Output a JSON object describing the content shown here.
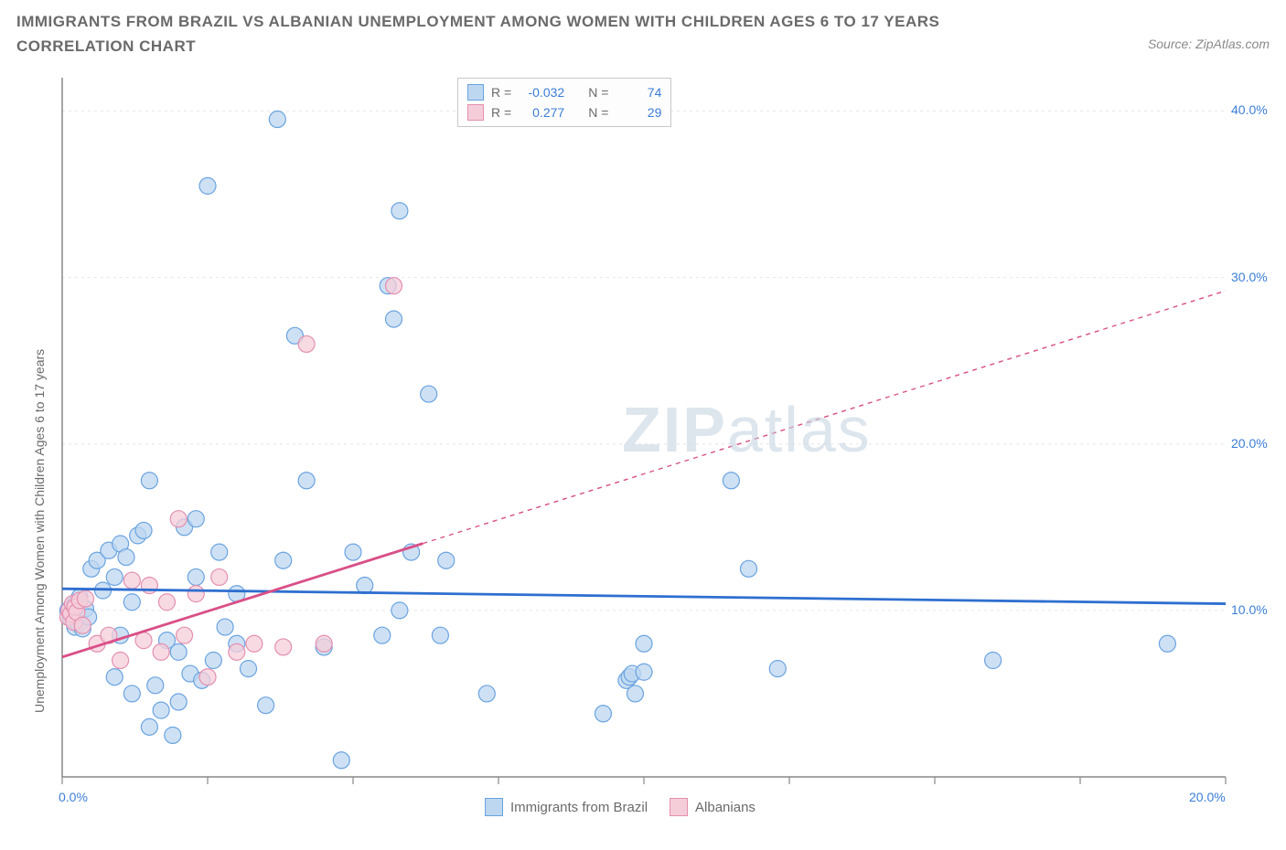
{
  "header": {
    "title": "IMMIGRANTS FROM BRAZIL VS ALBANIAN UNEMPLOYMENT AMONG WOMEN WITH CHILDREN AGES 6 TO 17 YEARS CORRELATION CHART",
    "source": "Source: ZipAtlas.com"
  },
  "watermark": {
    "bold": "ZIP",
    "light": "atlas"
  },
  "chart": {
    "type": "scatter",
    "ylabel": "Unemployment Among Women with Children Ages 6 to 17 years",
    "background_color": "#ffffff",
    "grid_color": "#e6e6e6",
    "axis_color": "#888888",
    "xlim": [
      0,
      20
    ],
    "ylim": [
      0,
      42
    ],
    "xtick_values": [
      0,
      2.5,
      5,
      7.5,
      10,
      12.5,
      15,
      17.5,
      20
    ],
    "xtick_labels": [
      "0.0%",
      "",
      "",
      "",
      "",
      "",
      "",
      "",
      "20.0%"
    ],
    "ytick_values": [
      10,
      20,
      30,
      40
    ],
    "ytick_labels": [
      "10.0%",
      "20.0%",
      "30.0%",
      "40.0%"
    ],
    "marker_radius": 9,
    "marker_stroke_width": 1.2,
    "trend_line_width": 2.8,
    "trend_dash": "5,5",
    "series": [
      {
        "key": "brazil",
        "label": "Immigrants from Brazil",
        "fill": "#bdd7f0",
        "stroke": "#6aa3e0",
        "line_color": "#2e6fd0",
        "R": "-0.032",
        "N": "74",
        "trend": {
          "x1": 0,
          "y1": 11.3,
          "x2": 20,
          "y2": 10.4,
          "solid_to_x": 20
        },
        "points": [
          [
            0.1,
            10.0
          ],
          [
            0.15,
            9.5
          ],
          [
            0.2,
            10.3
          ],
          [
            0.22,
            9.0
          ],
          [
            0.25,
            10.5
          ],
          [
            0.28,
            9.2
          ],
          [
            0.3,
            10.8
          ],
          [
            0.35,
            8.9
          ],
          [
            0.4,
            10.1
          ],
          [
            0.45,
            9.6
          ],
          [
            0.5,
            12.5
          ],
          [
            0.6,
            13.0
          ],
          [
            0.7,
            11.2
          ],
          [
            0.8,
            13.6
          ],
          [
            0.9,
            12.0
          ],
          [
            1.0,
            14.0
          ],
          [
            1.1,
            13.2
          ],
          [
            1.2,
            10.5
          ],
          [
            1.3,
            14.5
          ],
          [
            1.4,
            14.8
          ],
          [
            1.5,
            17.8
          ],
          [
            1.6,
            5.5
          ],
          [
            1.7,
            4.0
          ],
          [
            1.8,
            8.2
          ],
          [
            1.9,
            2.5
          ],
          [
            2.0,
            7.5
          ],
          [
            2.1,
            15.0
          ],
          [
            2.2,
            6.2
          ],
          [
            2.3,
            15.5
          ],
          [
            2.4,
            5.8
          ],
          [
            2.5,
            35.5
          ],
          [
            2.7,
            13.5
          ],
          [
            2.8,
            9.0
          ],
          [
            3.0,
            8.0
          ],
          [
            3.2,
            6.5
          ],
          [
            3.5,
            4.3
          ],
          [
            3.7,
            39.5
          ],
          [
            3.8,
            13.0
          ],
          [
            4.0,
            26.5
          ],
          [
            4.2,
            17.8
          ],
          [
            4.5,
            7.8
          ],
          [
            4.8,
            1.0
          ],
          [
            5.0,
            13.5
          ],
          [
            5.2,
            11.5
          ],
          [
            5.5,
            8.5
          ],
          [
            5.6,
            29.5
          ],
          [
            5.7,
            27.5
          ],
          [
            5.8,
            34.0
          ],
          [
            5.8,
            10.0
          ],
          [
            6.0,
            13.5
          ],
          [
            6.3,
            23.0
          ],
          [
            6.5,
            8.5
          ],
          [
            6.6,
            13.0
          ],
          [
            7.3,
            5.0
          ],
          [
            9.3,
            3.8
          ],
          [
            9.7,
            5.8
          ],
          [
            9.75,
            6.0
          ],
          [
            9.8,
            6.2
          ],
          [
            9.85,
            5.0
          ],
          [
            10.0,
            6.3
          ],
          [
            10.0,
            8.0
          ],
          [
            11.5,
            17.8
          ],
          [
            11.8,
            12.5
          ],
          [
            12.3,
            6.5
          ],
          [
            16.0,
            7.0
          ],
          [
            19.0,
            8.0
          ],
          [
            0.9,
            6.0
          ],
          [
            1.2,
            5.0
          ],
          [
            1.5,
            3.0
          ],
          [
            2.0,
            4.5
          ],
          [
            2.6,
            7.0
          ],
          [
            3.0,
            11.0
          ],
          [
            2.3,
            12.0
          ],
          [
            1.0,
            8.5
          ]
        ]
      },
      {
        "key": "albanians",
        "label": "Albanians",
        "fill": "#f5cdd9",
        "stroke": "#e38fb0",
        "line_color": "#d94f87",
        "R": "0.277",
        "N": "29",
        "trend": {
          "x1": 0,
          "y1": 7.2,
          "x2": 20,
          "y2": 29.2,
          "solid_to_x": 6.2
        },
        "points": [
          [
            0.1,
            9.6
          ],
          [
            0.12,
            10.0
          ],
          [
            0.15,
            9.8
          ],
          [
            0.18,
            10.4
          ],
          [
            0.2,
            9.3
          ],
          [
            0.22,
            10.2
          ],
          [
            0.25,
            9.9
          ],
          [
            0.3,
            10.6
          ],
          [
            0.35,
            9.1
          ],
          [
            0.4,
            10.7
          ],
          [
            0.6,
            8.0
          ],
          [
            0.8,
            8.5
          ],
          [
            1.0,
            7.0
          ],
          [
            1.2,
            11.8
          ],
          [
            1.4,
            8.2
          ],
          [
            1.5,
            11.5
          ],
          [
            1.7,
            7.5
          ],
          [
            1.8,
            10.5
          ],
          [
            2.0,
            15.5
          ],
          [
            2.1,
            8.5
          ],
          [
            2.3,
            11.0
          ],
          [
            2.5,
            6.0
          ],
          [
            2.7,
            12.0
          ],
          [
            3.0,
            7.5
          ],
          [
            3.3,
            8.0
          ],
          [
            3.8,
            7.8
          ],
          [
            4.2,
            26.0
          ],
          [
            4.5,
            8.0
          ],
          [
            5.7,
            29.5
          ]
        ]
      }
    ],
    "legend_top": {
      "border_color": "#c8c8c8",
      "R_label": "R =",
      "N_label": "N ="
    },
    "legend_bottom": {
      "swatch_size": 20
    }
  }
}
